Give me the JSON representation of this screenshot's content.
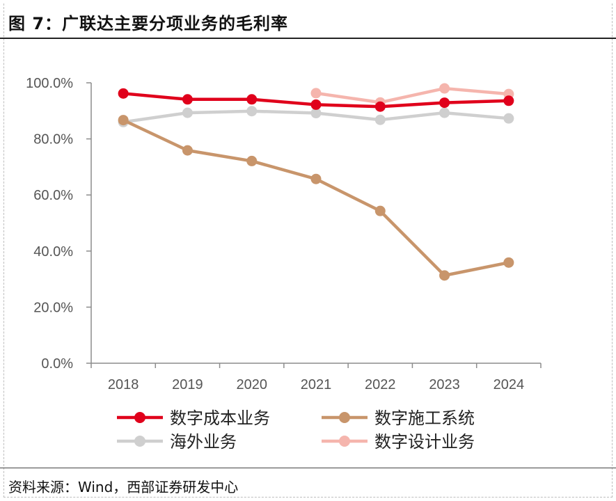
{
  "title": "图 7：广联达主要分项业务的毛利率",
  "source": "资料来源：Wind，西部证券研发中心",
  "chart_data": {
    "type": "line",
    "title": "",
    "xlabel": "",
    "ylabel": "",
    "categories": [
      "2018",
      "2019",
      "2020",
      "2021",
      "2022",
      "2023",
      "2024"
    ],
    "ylim": [
      0,
      100
    ],
    "yticks": [
      "0.0%",
      "20.0%",
      "40.0%",
      "60.0%",
      "80.0%",
      "100.0%"
    ],
    "grid": false,
    "legend_position": "bottom",
    "series": [
      {
        "name": "数字成本业务",
        "color": "#e0001b",
        "values": [
          96.2,
          94.1,
          94.1,
          92.2,
          91.5,
          92.9,
          93.6
        ]
      },
      {
        "name": "数字施工系统",
        "color": "#c8956b",
        "values": [
          86.7,
          75.9,
          72.1,
          65.7,
          54.3,
          31.3,
          35.9
        ]
      },
      {
        "name": "海外业务",
        "color": "#cfcfcf",
        "values": [
          86.0,
          89.3,
          89.9,
          89.2,
          86.8,
          89.3,
          87.3
        ]
      },
      {
        "name": "数字设计业务",
        "color": "#f5b5ad",
        "values": [
          null,
          null,
          null,
          96.3,
          93.0,
          98.0,
          96.0
        ]
      }
    ]
  }
}
